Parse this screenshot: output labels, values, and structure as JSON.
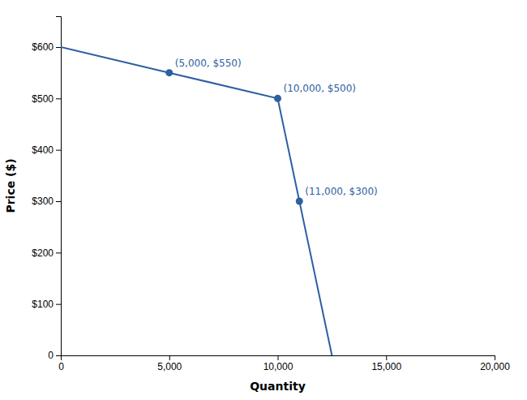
{
  "chart_data": {
    "type": "line",
    "x": [
      0,
      5000,
      10000,
      11000,
      12500
    ],
    "series": [
      {
        "values": [
          600,
          550,
          500,
          300,
          0
        ],
        "color": "#2E5FA3"
      },
      {
        "type": "scatter",
        "marker": "circle",
        "values": [
          null,
          550,
          500,
          300,
          null
        ],
        "color": "#2E5FA3"
      }
    ],
    "annotations": [
      {
        "text": "(5,000, $550)",
        "x": 5000,
        "y": 550
      },
      {
        "text": "(10,000, $500)",
        "x": 10000,
        "y": 500
      },
      {
        "text": "(11,000, $300)",
        "x": 11000,
        "y": 300
      }
    ],
    "xlim": [
      0,
      20000
    ],
    "ylim": [
      0,
      660
    ],
    "xticks": [
      0,
      {
        "value": 5000,
        "label": "5,000"
      },
      {
        "value": 10000,
        "label": "10,000"
      },
      {
        "value": 15000,
        "label": "15,000"
      },
      {
        "value": 20000,
        "label": "20,000"
      }
    ],
    "yticks": [
      0,
      {
        "value": 100,
        "label": "$100"
      },
      {
        "value": 200,
        "label": "$200"
      },
      {
        "value": 300,
        "label": "$300"
      },
      {
        "value": 400,
        "label": "$400"
      },
      {
        "value": 500,
        "label": "$500"
      },
      {
        "value": 600,
        "label": "$600"
      }
    ],
    "xlabel": "Quantity",
    "ylabel": "Price ($)",
    "grid": false
  }
}
